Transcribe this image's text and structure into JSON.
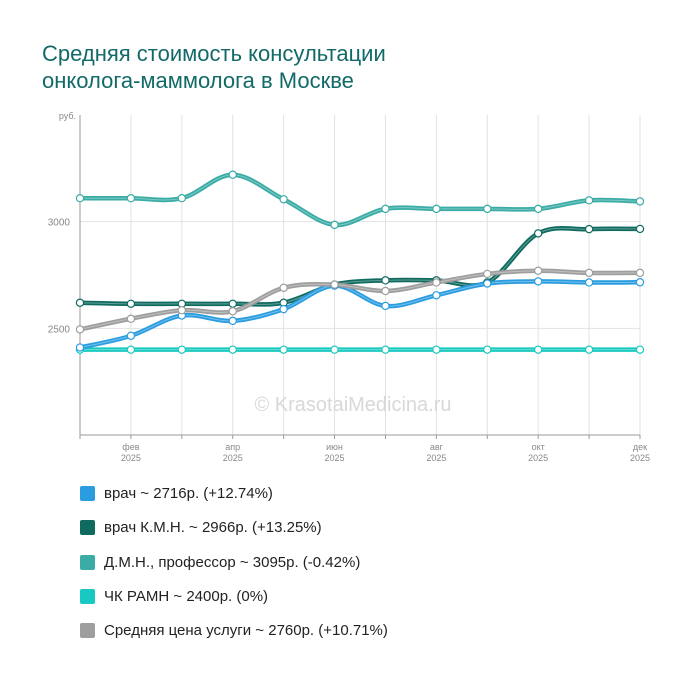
{
  "title_lines": [
    "Средняя стоимость консультации",
    "онколога-маммолога в Москве"
  ],
  "watermark": "© KrasotaiMedicina.ru",
  "chart_data": {
    "type": "line",
    "title": "Средняя стоимость консультации онколога-маммолога в Москве",
    "ylabel": "руб.",
    "xlabel": "",
    "ylim": [
      2000,
      3500
    ],
    "yticks": [
      2500,
      3000
    ],
    "grid": true,
    "x_months": 12,
    "x_tick_labels": [
      {
        "month": "фев",
        "year": "2025",
        "index": 1
      },
      {
        "month": "апр",
        "year": "2025",
        "index": 3
      },
      {
        "month": "июн",
        "year": "2025",
        "index": 5
      },
      {
        "month": "авг",
        "year": "2025",
        "index": 7
      },
      {
        "month": "окт",
        "year": "2025",
        "index": 9
      },
      {
        "month": "дек",
        "year": "2025",
        "index": 11
      }
    ],
    "series": [
      {
        "name": "Д.М.Н., профессор",
        "color": "#3aaca5",
        "values": [
          3110,
          3110,
          3110,
          3220,
          3105,
          2985,
          3060,
          3060,
          3060,
          3060,
          3100,
          3095
        ],
        "legend": "Д.М.Н., профессор ~ 3095р. (-0.42%)"
      },
      {
        "name": "врач К.М.Н.",
        "color": "#0f6b5f",
        "values": [
          2620,
          2615,
          2615,
          2615,
          2620,
          2705,
          2725,
          2725,
          2715,
          2945,
          2965,
          2966
        ],
        "legend": "врач К.М.Н. ~ 2966р. (+13.25%)"
      },
      {
        "name": "ЧК РАМН",
        "color": "#17c9c0",
        "values": [
          2400,
          2400,
          2400,
          2400,
          2400,
          2400,
          2400,
          2400,
          2400,
          2400,
          2400,
          2400
        ],
        "legend": "ЧК РАМН ~ 2400р. (0%)"
      },
      {
        "name": "врач",
        "color": "#2a9de0",
        "values": [
          2410,
          2465,
          2560,
          2535,
          2590,
          2700,
          2605,
          2655,
          2710,
          2720,
          2715,
          2716
        ],
        "legend": "врач ~ 2716р. (+12.74%)"
      },
      {
        "name": "Средняя цена услуги",
        "color": "#9e9e9e",
        "values": [
          2495,
          2545,
          2585,
          2580,
          2690,
          2705,
          2675,
          2715,
          2755,
          2770,
          2760,
          2760
        ],
        "legend": "Средняя цена услуги ~ 2760р. (+10.71%)"
      }
    ],
    "legend_order": [
      {
        "text": "врач ~ 2716р. (+12.74%)",
        "color": "#2a9de0"
      },
      {
        "text": "врач К.М.Н. ~ 2966р. (+13.25%)",
        "color": "#0f6b5f"
      },
      {
        "text": "Д.М.Н., профессор ~ 3095р. (-0.42%)",
        "color": "#3aaca5"
      },
      {
        "text": "ЧК РАМН ~ 2400р. (0%)",
        "color": "#17c9c0"
      },
      {
        "text": "Средняя цена услуги ~ 2760р. (+10.71%)",
        "color": "#9e9e9e"
      }
    ]
  }
}
